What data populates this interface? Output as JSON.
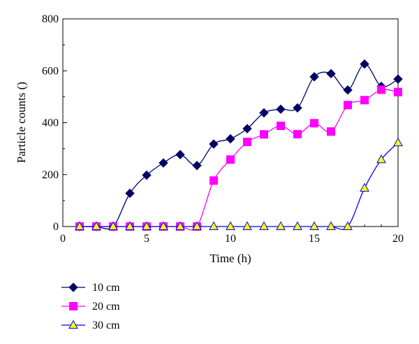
{
  "chart_data": {
    "type": "line",
    "title": "",
    "xlabel": "Time (h)",
    "ylabel": "Particle counts ()",
    "xlim": [
      0,
      20
    ],
    "ylim": [
      0,
      800
    ],
    "xticks": [
      0,
      5,
      10,
      15,
      20
    ],
    "yticks": [
      0,
      200,
      400,
      600,
      800
    ],
    "grid": false,
    "legend_position": "bottom-left",
    "x": [
      1,
      2,
      3,
      4,
      5,
      6,
      7,
      8,
      9,
      10,
      11,
      12,
      13,
      14,
      15,
      16,
      17,
      18,
      19,
      20
    ],
    "series": [
      {
        "name": "10 cm",
        "marker": "diamond",
        "color": "#000066",
        "marker_fill": "#000066",
        "values": [
          0,
          0,
          0,
          128,
          198,
          245,
          277,
          235,
          318,
          338,
          377,
          438,
          452,
          457,
          577,
          589,
          526,
          626,
          540,
          568
        ]
      },
      {
        "name": "20 cm",
        "marker": "square",
        "color": "#ff00ff",
        "marker_fill": "#ff00ff",
        "values": [
          0,
          0,
          0,
          0,
          0,
          0,
          0,
          0,
          177,
          258,
          326,
          355,
          388,
          356,
          398,
          366,
          468,
          487,
          527,
          518
        ]
      },
      {
        "name": "30 cm",
        "marker": "triangle",
        "color": "#0000ff",
        "marker_fill": "#ffff00",
        "values": [
          0,
          0,
          0,
          0,
          0,
          0,
          0,
          0,
          0,
          0,
          0,
          0,
          0,
          0,
          0,
          0,
          0,
          148,
          258,
          323
        ]
      }
    ]
  }
}
